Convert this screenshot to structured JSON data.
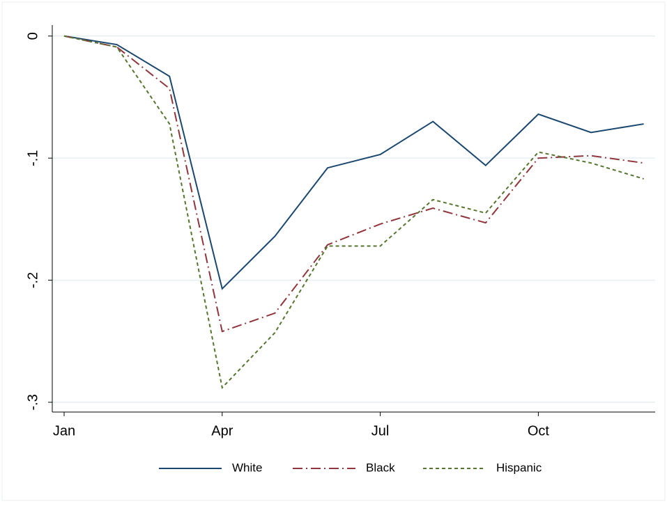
{
  "chart_data": {
    "type": "line",
    "categories": [
      "Jan",
      null,
      null,
      "Apr",
      null,
      null,
      "Jul",
      null,
      null,
      "Oct",
      null,
      null
    ],
    "series": [
      {
        "name": "White",
        "color": "#1a476f",
        "dash": "solid",
        "values": [
          0,
          -0.007,
          -0.033,
          -0.207,
          -0.164,
          -0.108,
          -0.097,
          -0.07,
          -0.106,
          -0.064,
          -0.079,
          -0.072
        ]
      },
      {
        "name": "Black",
        "color": "#90353b",
        "dash": "dashdot",
        "values": [
          0,
          -0.009,
          -0.043,
          -0.242,
          -0.227,
          -0.171,
          -0.154,
          -0.141,
          -0.153,
          -0.1,
          -0.098,
          -0.104
        ]
      },
      {
        "name": "Hispanic",
        "color": "#55752f",
        "dash": "dash",
        "values": [
          0,
          -0.009,
          -0.072,
          -0.288,
          -0.243,
          -0.172,
          -0.172,
          -0.134,
          -0.145,
          -0.095,
          -0.104,
          -0.117
        ]
      }
    ],
    "ylim": [
      -0.308,
      0.009
    ],
    "yticks": [
      0,
      {
        "value": -0.1,
        "label": "-.1"
      },
      {
        "value": -0.2,
        "label": "-.2"
      },
      {
        "value": -0.3,
        "label": "-.3"
      }
    ],
    "grid": true,
    "legend": "bottom"
  }
}
